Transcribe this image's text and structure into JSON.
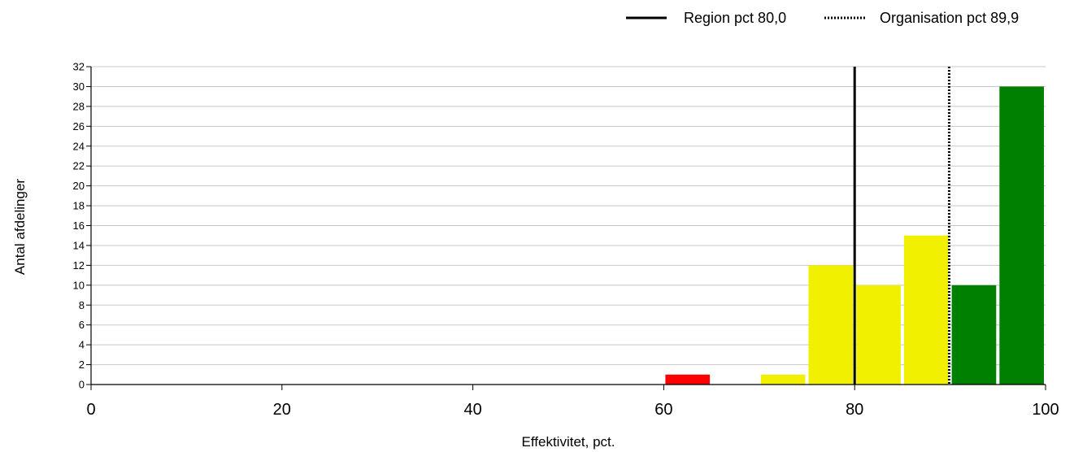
{
  "chart_data": {
    "type": "bar",
    "xlabel": "Effektivitet, pct.",
    "ylabel": "Antal afdelinger",
    "xlim": [
      0,
      100
    ],
    "ylim": [
      0,
      32
    ],
    "x_ticks": [
      "0",
      "20",
      "40",
      "60",
      "80",
      "100"
    ],
    "y_ticks": [
      "0",
      "2",
      "4",
      "6",
      "8",
      "10",
      "12",
      "14",
      "16",
      "18",
      "20",
      "22",
      "24",
      "26",
      "28",
      "30",
      "32"
    ],
    "grid": true,
    "bin_width": 5,
    "bars": [
      {
        "bin_start": 60,
        "bin_end": 65,
        "value": 1,
        "color": "#ff0000"
      },
      {
        "bin_start": 70,
        "bin_end": 75,
        "value": 1,
        "color": "#f0f000"
      },
      {
        "bin_start": 75,
        "bin_end": 80,
        "value": 12,
        "color": "#f0f000"
      },
      {
        "bin_start": 80,
        "bin_end": 85,
        "value": 10,
        "color": "#f0f000"
      },
      {
        "bin_start": 85,
        "bin_end": 90,
        "value": 15,
        "color": "#f0f000"
      },
      {
        "bin_start": 90,
        "bin_end": 95,
        "value": 10,
        "color": "#008000"
      },
      {
        "bin_start": 95,
        "bin_end": 100,
        "value": 30,
        "color": "#008000"
      }
    ],
    "reference_lines": [
      {
        "label": "Region pct 80,0",
        "x": 80.0,
        "style": "solid",
        "color": "#000000"
      },
      {
        "label": "Organisation pct 89,9",
        "x": 89.9,
        "style": "dotted",
        "color": "#000000"
      }
    ],
    "legend_position": "top-right"
  }
}
